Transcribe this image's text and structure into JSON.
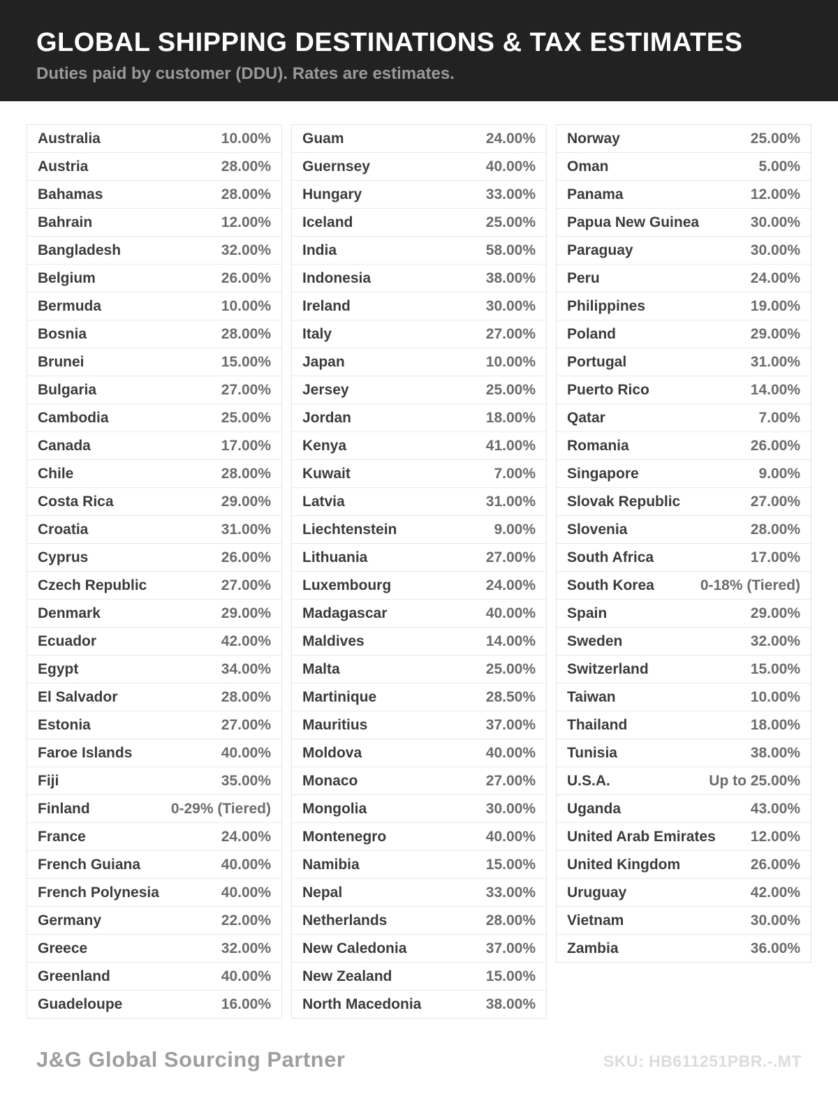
{
  "header": {
    "title": "GLOBAL SHIPPING DESTINATIONS & TAX ESTIMATES",
    "subtitle": "Duties paid by customer (DDU). Rates are estimates.",
    "background_color": "#222222"
  },
  "table": {
    "columns": [
      [
        {
          "country": "Australia",
          "rate": "10.00%"
        },
        {
          "country": "Austria",
          "rate": "28.00%"
        },
        {
          "country": "Bahamas",
          "rate": "28.00%"
        },
        {
          "country": "Bahrain",
          "rate": "12.00%"
        },
        {
          "country": "Bangladesh",
          "rate": "32.00%"
        },
        {
          "country": "Belgium",
          "rate": "26.00%"
        },
        {
          "country": "Bermuda",
          "rate": "10.00%"
        },
        {
          "country": "Bosnia",
          "rate": "28.00%"
        },
        {
          "country": "Brunei",
          "rate": "15.00%"
        },
        {
          "country": "Bulgaria",
          "rate": "27.00%"
        },
        {
          "country": "Cambodia",
          "rate": "25.00%"
        },
        {
          "country": "Canada",
          "rate": "17.00%"
        },
        {
          "country": "Chile",
          "rate": "28.00%"
        },
        {
          "country": "Costa Rica",
          "rate": "29.00%"
        },
        {
          "country": "Croatia",
          "rate": "31.00%"
        },
        {
          "country": "Cyprus",
          "rate": "26.00%"
        },
        {
          "country": "Czech Republic",
          "rate": "27.00%"
        },
        {
          "country": "Denmark",
          "rate": "29.00%"
        },
        {
          "country": "Ecuador",
          "rate": "42.00%"
        },
        {
          "country": "Egypt",
          "rate": "34.00%"
        },
        {
          "country": "El Salvador",
          "rate": "28.00%"
        },
        {
          "country": "Estonia",
          "rate": "27.00%"
        },
        {
          "country": "Faroe Islands",
          "rate": "40.00%"
        },
        {
          "country": "Fiji",
          "rate": "35.00%"
        },
        {
          "country": "Finland",
          "rate": "0-29% (Tiered)"
        },
        {
          "country": "France",
          "rate": "24.00%"
        },
        {
          "country": "French Guiana",
          "rate": "40.00%"
        },
        {
          "country": "French Polynesia",
          "rate": "40.00%"
        },
        {
          "country": "Germany",
          "rate": "22.00%"
        },
        {
          "country": "Greece",
          "rate": "32.00%"
        },
        {
          "country": "Greenland",
          "rate": "40.00%"
        },
        {
          "country": "Guadeloupe",
          "rate": "16.00%"
        }
      ],
      [
        {
          "country": "Guam",
          "rate": "24.00%"
        },
        {
          "country": "Guernsey",
          "rate": "40.00%"
        },
        {
          "country": "Hungary",
          "rate": "33.00%"
        },
        {
          "country": "Iceland",
          "rate": "25.00%"
        },
        {
          "country": "India",
          "rate": "58.00%"
        },
        {
          "country": "Indonesia",
          "rate": "38.00%"
        },
        {
          "country": "Ireland",
          "rate": "30.00%"
        },
        {
          "country": "Italy",
          "rate": "27.00%"
        },
        {
          "country": "Japan",
          "rate": "10.00%"
        },
        {
          "country": "Jersey",
          "rate": "25.00%"
        },
        {
          "country": "Jordan",
          "rate": "18.00%"
        },
        {
          "country": "Kenya",
          "rate": "41.00%"
        },
        {
          "country": "Kuwait",
          "rate": "7.00%"
        },
        {
          "country": "Latvia",
          "rate": "31.00%"
        },
        {
          "country": "Liechtenstein",
          "rate": "9.00%"
        },
        {
          "country": "Lithuania",
          "rate": "27.00%"
        },
        {
          "country": "Luxembourg",
          "rate": "24.00%"
        },
        {
          "country": "Madagascar",
          "rate": "40.00%"
        },
        {
          "country": "Maldives",
          "rate": "14.00%"
        },
        {
          "country": "Malta",
          "rate": "25.00%"
        },
        {
          "country": "Martinique",
          "rate": "28.50%"
        },
        {
          "country": "Mauritius",
          "rate": "37.00%"
        },
        {
          "country": "Moldova",
          "rate": "40.00%"
        },
        {
          "country": "Monaco",
          "rate": "27.00%"
        },
        {
          "country": "Mongolia",
          "rate": "30.00%"
        },
        {
          "country": "Montenegro",
          "rate": "40.00%"
        },
        {
          "country": "Namibia",
          "rate": "15.00%"
        },
        {
          "country": "Nepal",
          "rate": "33.00%"
        },
        {
          "country": "Netherlands",
          "rate": "28.00%"
        },
        {
          "country": "New Caledonia",
          "rate": "37.00%"
        },
        {
          "country": "New Zealand",
          "rate": "15.00%"
        },
        {
          "country": "North Macedonia",
          "rate": "38.00%"
        }
      ],
      [
        {
          "country": "Norway",
          "rate": "25.00%"
        },
        {
          "country": "Oman",
          "rate": "5.00%"
        },
        {
          "country": "Panama",
          "rate": "12.00%"
        },
        {
          "country": "Papua New Guinea",
          "rate": "30.00%"
        },
        {
          "country": "Paraguay",
          "rate": "30.00%"
        },
        {
          "country": "Peru",
          "rate": "24.00%"
        },
        {
          "country": "Philippines",
          "rate": "19.00%"
        },
        {
          "country": "Poland",
          "rate": "29.00%"
        },
        {
          "country": "Portugal",
          "rate": "31.00%"
        },
        {
          "country": "Puerto Rico",
          "rate": "14.00%"
        },
        {
          "country": "Qatar",
          "rate": "7.00%"
        },
        {
          "country": "Romania",
          "rate": "26.00%"
        },
        {
          "country": "Singapore",
          "rate": "9.00%"
        },
        {
          "country": "Slovak Republic",
          "rate": "27.00%"
        },
        {
          "country": "Slovenia",
          "rate": "28.00%"
        },
        {
          "country": "South Africa",
          "rate": "17.00%"
        },
        {
          "country": "South Korea",
          "rate": "0-18% (Tiered)"
        },
        {
          "country": "Spain",
          "rate": "29.00%"
        },
        {
          "country": "Sweden",
          "rate": "32.00%"
        },
        {
          "country": "Switzerland",
          "rate": "15.00%"
        },
        {
          "country": "Taiwan",
          "rate": "10.00%"
        },
        {
          "country": "Thailand",
          "rate": "18.00%"
        },
        {
          "country": "Tunisia",
          "rate": "38.00%"
        },
        {
          "country": "U.S.A.",
          "rate": "Up to 25.00%"
        },
        {
          "country": "Uganda",
          "rate": "43.00%"
        },
        {
          "country": "United Arab Emirates",
          "rate": "12.00%"
        },
        {
          "country": "United Kingdom",
          "rate": "26.00%"
        },
        {
          "country": "Uruguay",
          "rate": "42.00%"
        },
        {
          "country": "Vietnam",
          "rate": "30.00%"
        },
        {
          "country": "Zambia",
          "rate": "36.00%"
        }
      ]
    ]
  },
  "footer": {
    "brand": "J&G Global Sourcing Partner",
    "sku": "SKU: HB611251PBR.-.MT"
  }
}
